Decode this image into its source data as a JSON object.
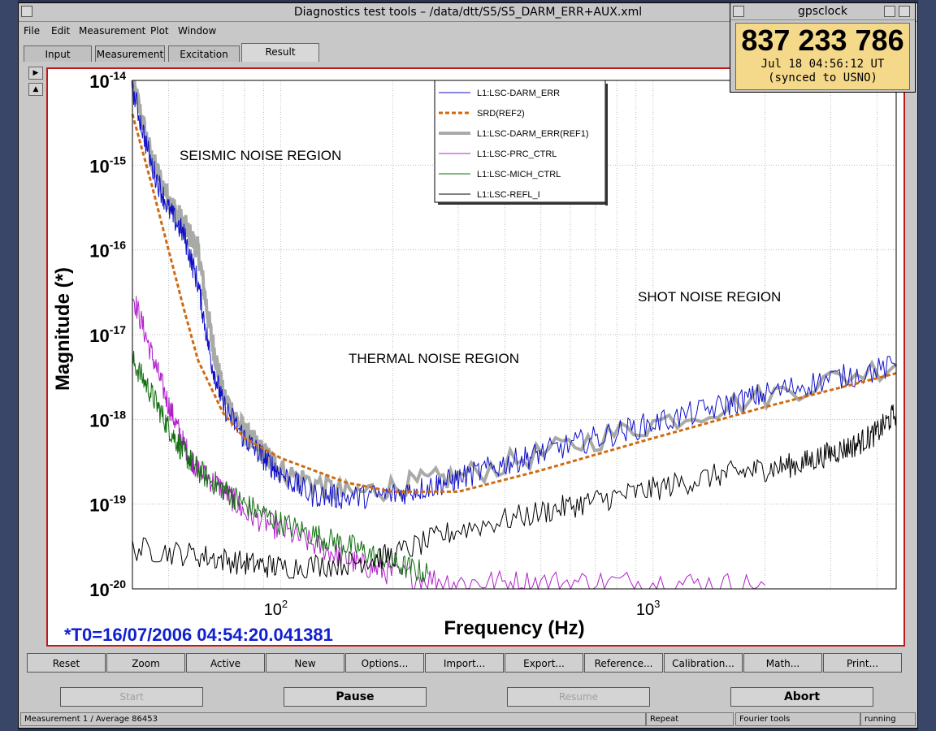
{
  "window": {
    "title": "Diagnostics test tools – /data/dtt/S5/S5_DARM_ERR+AUX.xml",
    "menu": [
      "File",
      "Edit",
      "Measurement",
      "Plot",
      "Window"
    ],
    "tabs": [
      "Input",
      "Measurement",
      "Excitation",
      "Result"
    ],
    "active_tab": "Result"
  },
  "gpsclock": {
    "title": "gpsclock",
    "gps_time": "837 233 786",
    "date": "Jul 18  04:56:12 UT",
    "sync": "(synced to USNO)"
  },
  "plot": {
    "ylabel": "Magnitude (*)",
    "xlabel": "Frequency (Hz)",
    "t0": "*T0=16/07/2006 04:54:20.041381",
    "ytick_labels": [
      "10",
      "10",
      "10",
      "10",
      "10",
      "10",
      "10"
    ],
    "ytick_exponents": [
      "-14",
      "-15",
      "-16",
      "-17",
      "-18",
      "-19",
      "-20"
    ],
    "xtick_labels": [
      "10",
      "10"
    ],
    "xtick_exponents": [
      "2",
      "3"
    ],
    "annotations": {
      "seismic": "SEISMIC NOISE REGION",
      "thermal": "THERMAL NOISE REGION",
      "shot": "SHOT NOISE REGION"
    },
    "legend": [
      {
        "name": "L1:LSC-DARM_ERR",
        "color": "#1010c8",
        "style": "solid"
      },
      {
        "name": "SRD(REF2)",
        "color": "#d06a10",
        "style": "dashed"
      },
      {
        "name": "L1:LSC-DARM_ERR(REF1)",
        "color": "#a8aaa8",
        "style": "thick"
      },
      {
        "name": "L1:LSC-PRC_CTRL",
        "color": "#b020c8",
        "style": "solid"
      },
      {
        "name": "L1:LSC-MICH_CTRL",
        "color": "#107010",
        "style": "solid"
      },
      {
        "name": "L1:LSC-REFL_I",
        "color": "#000000",
        "style": "solid"
      }
    ]
  },
  "chart_data": {
    "type": "line",
    "xscale": "log",
    "yscale": "log",
    "xlim": [
      40,
      4500
    ],
    "ylim": [
      1e-20,
      1e-14
    ],
    "grid": true,
    "legend_position": "top-center",
    "series": [
      {
        "name": "L1:LSC-DARM_ERR",
        "x": [
          40,
          45,
          50,
          55,
          60,
          65,
          70,
          80,
          90,
          100,
          120,
          150,
          200,
          250,
          300,
          400,
          500,
          700,
          1000,
          1500,
          2000,
          3000,
          4500
        ],
        "y": [
          8e-15,
          1e-15,
          3e-16,
          1.5e-16,
          4e-17,
          5e-18,
          1.5e-18,
          6e-19,
          3.5e-19,
          2.3e-19,
          1.3e-19,
          1.2e-19,
          1.3e-19,
          1.6e-19,
          2e-19,
          3e-19,
          4e-19,
          6e-19,
          9e-19,
          1.4e-18,
          2e-18,
          3e-18,
          4.2e-18
        ]
      },
      {
        "name": "SRD(REF2)",
        "x": [
          40,
          45,
          50,
          55,
          60,
          70,
          80,
          100,
          150,
          200,
          300,
          500,
          1000,
          2000,
          4500
        ],
        "y": [
          4e-15,
          6e-16,
          1e-16,
          2e-17,
          5e-18,
          1.2e-18,
          6e-19,
          3.5e-19,
          1.8e-19,
          1.4e-19,
          1.4e-19,
          2.5e-19,
          6e-19,
          1.4e-18,
          3.5e-18
        ]
      },
      {
        "name": "L1:LSC-DARM_ERR(REF1)",
        "x": [
          40,
          45,
          50,
          55,
          60,
          65,
          70,
          80,
          90,
          100,
          150,
          300,
          1000,
          4500
        ],
        "y": [
          1e-14,
          1.2e-15,
          4e-16,
          2e-16,
          1e-16,
          1e-17,
          2e-18,
          7e-19,
          4e-19,
          2.5e-19,
          1.3e-19,
          2.1e-19,
          9e-19,
          4.5e-18
        ]
      },
      {
        "name": "L1:LSC-PRC_CTRL",
        "x": [
          40,
          45,
          50,
          55,
          60,
          70,
          80,
          100,
          130,
          160,
          200,
          300,
          500,
          1000,
          2000
        ],
        "y": [
          3e-17,
          6e-18,
          1.5e-18,
          5e-19,
          2.5e-19,
          1.5e-19,
          8e-20,
          5e-20,
          3e-20,
          2e-20,
          1.5e-20,
          1.2e-20,
          1.2e-20,
          1.2e-20,
          1.1e-20
        ]
      },
      {
        "name": "L1:LSC-MICH_CTRL",
        "x": [
          40,
          45,
          50,
          55,
          60,
          70,
          80,
          100,
          130,
          160,
          200,
          250
        ],
        "y": [
          5e-18,
          2e-18,
          8e-19,
          4e-19,
          2.5e-19,
          1.5e-19,
          1e-19,
          6e-20,
          4e-20,
          3e-20,
          2e-20,
          1.5e-20
        ]
      },
      {
        "name": "L1:LSC-REFL_I",
        "x": [
          40,
          60,
          80,
          100,
          150,
          200,
          300,
          500,
          700,
          1000,
          1500,
          2000,
          2500,
          3000,
          3500,
          4000,
          4500
        ],
        "y": [
          3e-20,
          2.5e-20,
          2e-20,
          1.8e-20,
          2e-20,
          2.5e-20,
          5e-20,
          8e-20,
          1.1e-19,
          1.5e-19,
          2.2e-19,
          2.6e-19,
          3e-19,
          4e-19,
          5e-19,
          7e-19,
          1.2e-18
        ]
      }
    ]
  },
  "toolbar": [
    "Reset",
    "Zoom",
    "Active",
    "New",
    "Options...",
    "Import...",
    "Export...",
    "Reference...",
    "Calibration...",
    "Math...",
    "Print..."
  ],
  "controls": {
    "start": "Start",
    "pause": "Pause",
    "resume": "Resume",
    "abort": "Abort"
  },
  "status": {
    "measurement": "Measurement 1 / Average 86453",
    "repeat": "Repeat",
    "tool": "Fourier tools",
    "state": "running"
  }
}
